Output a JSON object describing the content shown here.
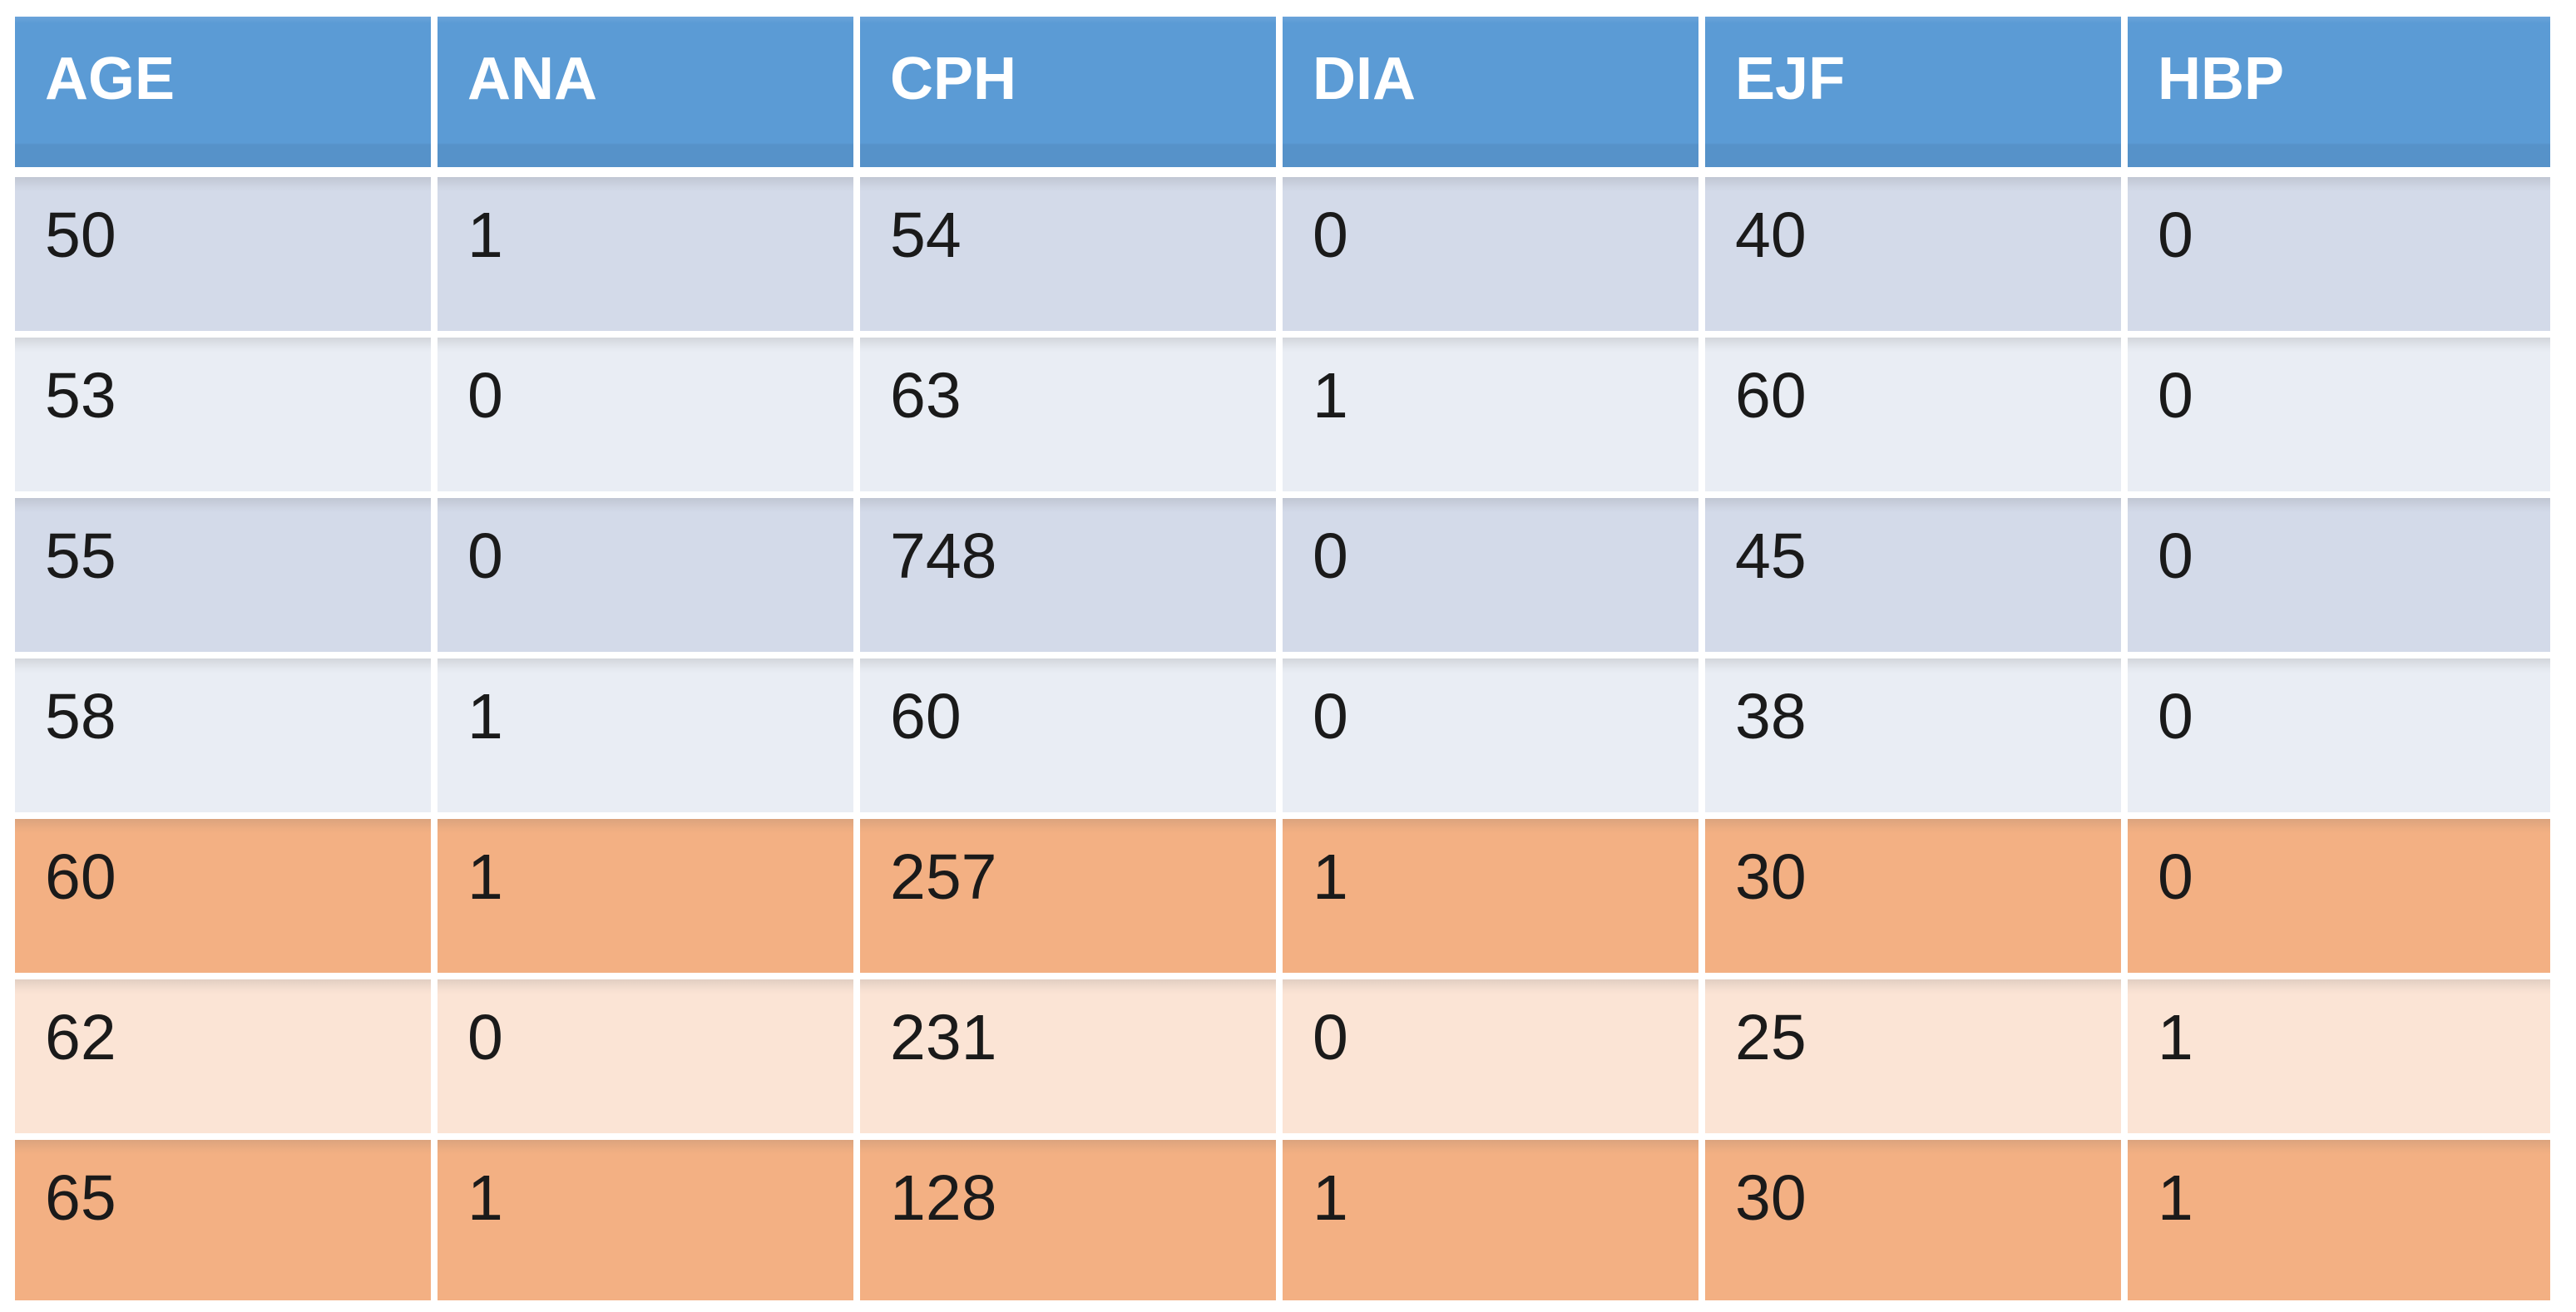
{
  "table": {
    "columns": [
      "AGE",
      "ANA",
      "CPH",
      "DIA",
      "EJF",
      "HBP"
    ],
    "rows": [
      {
        "band": "band-blue-dark",
        "cells": [
          "50",
          "1",
          "54",
          "0",
          "40",
          "0"
        ]
      },
      {
        "band": "band-blue-light",
        "cells": [
          "53",
          "0",
          "63",
          "1",
          "60",
          "0"
        ]
      },
      {
        "band": "band-blue-dark",
        "cells": [
          "55",
          "0",
          "748",
          "0",
          "45",
          "0"
        ]
      },
      {
        "band": "band-blue-light",
        "cells": [
          "58",
          "1",
          "60",
          "0",
          "38",
          "0"
        ]
      },
      {
        "band": "band-orange-dark",
        "cells": [
          "60",
          "1",
          "257",
          "1",
          "30",
          "0"
        ]
      },
      {
        "band": "band-orange-light",
        "cells": [
          "62",
          "0",
          "231",
          "0",
          "25",
          "1"
        ]
      },
      {
        "band": "band-orange-dark",
        "cells": [
          "65",
          "1",
          "128",
          "1",
          "30",
          "1"
        ]
      }
    ],
    "colors": {
      "header_bg": "#5B9BD5",
      "header_bg_bottom_strip": "#5692C9",
      "header_text": "#FFFFFF",
      "band_blue_dark": "#D3DAE9",
      "band_blue_light": "#E9EDF4",
      "band_orange_dark": "#F3B083",
      "band_orange_light": "#FBE4D5",
      "gridline": "#FFFFFF",
      "cell_text": "#1A1A1A",
      "page_background": "#FFFFFF"
    }
  },
  "chart_data": {
    "type": "table",
    "title": "",
    "columns": [
      "AGE",
      "ANA",
      "CPH",
      "DIA",
      "EJF",
      "HBP"
    ],
    "rows": [
      [
        50,
        1,
        54,
        0,
        40,
        0
      ],
      [
        53,
        0,
        63,
        1,
        60,
        0
      ],
      [
        55,
        0,
        748,
        0,
        45,
        0
      ],
      [
        58,
        1,
        60,
        0,
        38,
        0
      ],
      [
        60,
        1,
        257,
        1,
        30,
        0
      ],
      [
        62,
        0,
        231,
        0,
        25,
        1
      ],
      [
        65,
        1,
        128,
        1,
        30,
        1
      ]
    ],
    "layout_hints": {
      "header_fill": "#5B9BD5",
      "banding": [
        "blue-dark",
        "blue-light",
        "blue-dark",
        "blue-light",
        "orange-dark",
        "orange-light",
        "orange-dark"
      ],
      "gridlines": "white"
    }
  }
}
